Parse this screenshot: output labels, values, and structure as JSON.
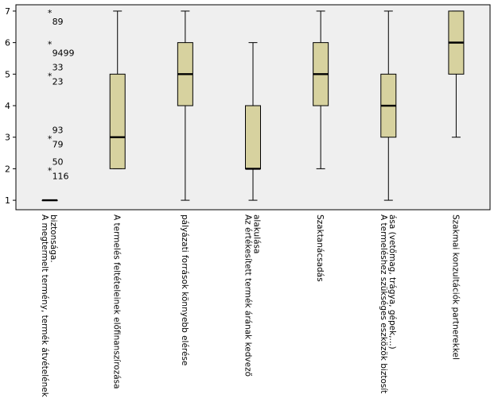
{
  "chart_data": {
    "type": "boxplot",
    "title": "",
    "xlabel": "",
    "ylabel": "",
    "ylim": [
      0.7,
      7.2
    ],
    "yticks": [
      "1",
      "2",
      "3",
      "4",
      "5",
      "6",
      "7"
    ],
    "grid": false,
    "legend": "none",
    "box_color": "#d7d29f",
    "background_color": "#efefef",
    "categories": [
      [
        "A megtermelt termény, termék átvételének",
        "biztonsága."
      ],
      [
        "A termelés feltételeinek előfinanszírozása"
      ],
      [
        "pályázati források könnyebb elérése"
      ],
      [
        "Az értékesített termék árának kedvező",
        "alakulása"
      ],
      [
        "Szaktanácsadás"
      ],
      [
        "A termeléshez szükséges eszközök biztosít",
        "ása (vetőmag, trágya, gépek,...)"
      ],
      [
        "Szakmai konzultációk partnerekkel"
      ]
    ],
    "boxes": [
      {
        "min": 1,
        "q1": 1,
        "median": 1,
        "q3": 1,
        "max": 1
      },
      {
        "min": 2,
        "q1": 2,
        "median": 3,
        "q3": 5,
        "max": 7
      },
      {
        "min": 1,
        "q1": 4,
        "median": 5,
        "q3": 6,
        "max": 7
      },
      {
        "min": 1,
        "q1": 2,
        "median": 2,
        "q3": 4,
        "max": 6
      },
      {
        "min": 2,
        "q1": 4,
        "median": 5,
        "q3": 6,
        "max": 7
      },
      {
        "min": 1,
        "q1": 3,
        "median": 4,
        "q3": 5,
        "max": 7
      },
      {
        "min": 3,
        "q1": 5,
        "median": 6,
        "q3": 7,
        "max": 7
      }
    ],
    "outliers": [
      {
        "category": 0,
        "value": 7,
        "labels": [
          "89"
        ]
      },
      {
        "category": 0,
        "value": 6,
        "labels": [
          "9499"
        ]
      },
      {
        "category": 0,
        "value": 5,
        "labels": [
          "33",
          "23"
        ]
      },
      {
        "category": 0,
        "value": 3,
        "labels": [
          "93",
          "79"
        ]
      },
      {
        "category": 0,
        "value": 2,
        "labels": [
          "50",
          "116"
        ]
      }
    ]
  }
}
